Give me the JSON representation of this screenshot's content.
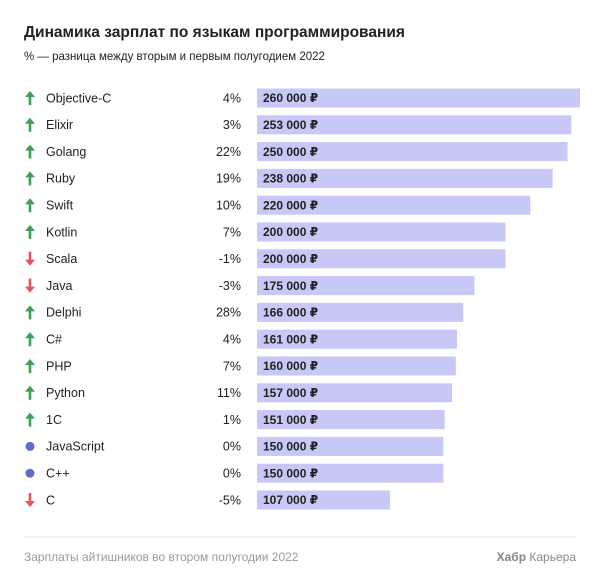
{
  "chart_data": {
    "type": "bar",
    "title": "Динамика зарплат по языкам программирования",
    "subtitle": "% — разница между вторым и первым полугодием 2022",
    "categories": [
      "Objective-C",
      "Elixir",
      "Golang",
      "Ruby",
      "Swift",
      "Kotlin",
      "Scala",
      "Java",
      "Delphi",
      "C#",
      "PHP",
      "Python",
      "1C",
      "JavaScript",
      "C++",
      "C"
    ],
    "values": [
      260000,
      253000,
      250000,
      238000,
      220000,
      200000,
      200000,
      175000,
      166000,
      161000,
      160000,
      157000,
      151000,
      150000,
      150000,
      107000
    ],
    "value_labels": [
      "260 000 ₽",
      "253 000 ₽",
      "250 000 ₽",
      "238 000 ₽",
      "220 000 ₽",
      "200 000 ₽",
      "200 000 ₽",
      "175 000 ₽",
      "166 000 ₽",
      "161 000 ₽",
      "160 000 ₽",
      "157 000 ₽",
      "151 000 ₽",
      "150 000 ₽",
      "150 000 ₽",
      "107 000 ₽"
    ],
    "changes": [
      4,
      3,
      22,
      19,
      10,
      7,
      -1,
      -3,
      28,
      4,
      7,
      11,
      1,
      0,
      0,
      -5
    ],
    "change_labels": [
      "4%",
      "3%",
      "22%",
      "19%",
      "10%",
      "7%",
      "-1%",
      "-3%",
      "28%",
      "4%",
      "7%",
      "11%",
      "1%",
      "0%",
      "0%",
      "-5%"
    ],
    "color": "#c7c8f6",
    "up_color": "#3f9f55",
    "down_color": "#e0575b",
    "flat_color": "#5f6fc6",
    "source": "Зарплаты айтишников во втором полугодии 2022",
    "brand": "Хабр",
    "brand_suffix": "Карьера"
  }
}
